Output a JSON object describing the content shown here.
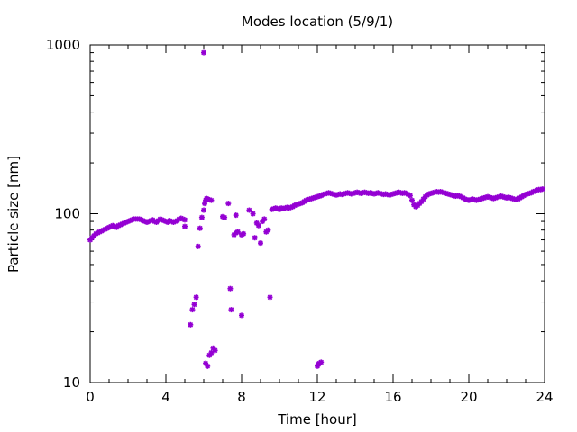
{
  "chart_data": {
    "type": "scatter",
    "title": "Modes location (5/9/1)",
    "xlabel": "Time [hour]",
    "ylabel": "Particle size [nm]",
    "xlim": [
      0,
      24
    ],
    "ylim": [
      10,
      1000
    ],
    "yscale": "log",
    "grid": false,
    "marker_color": "#9400d3",
    "x_ticks": [
      0,
      4,
      8,
      12,
      16,
      20,
      24
    ],
    "x_tick_labels": [
      "0",
      "4",
      "8",
      "12",
      "16",
      "20",
      "24"
    ],
    "y_ticks": [
      10,
      100,
      1000
    ],
    "y_tick_labels": [
      "10",
      "100",
      "1000"
    ],
    "series": [
      {
        "points": [
          [
            0.0,
            70
          ],
          [
            0.1,
            72
          ],
          [
            0.2,
            74
          ],
          [
            0.3,
            76
          ],
          [
            0.4,
            77
          ],
          [
            0.5,
            78
          ],
          [
            0.6,
            79
          ],
          [
            0.7,
            80
          ],
          [
            0.8,
            81
          ],
          [
            0.9,
            82
          ],
          [
            1.0,
            83
          ],
          [
            1.1,
            84
          ],
          [
            1.2,
            85
          ],
          [
            1.3,
            84
          ],
          [
            1.4,
            83
          ],
          [
            1.5,
            85
          ],
          [
            1.6,
            86
          ],
          [
            1.7,
            87
          ],
          [
            1.8,
            88
          ],
          [
            1.9,
            89
          ],
          [
            2.0,
            90
          ],
          [
            2.1,
            91
          ],
          [
            2.2,
            92
          ],
          [
            2.3,
            93
          ],
          [
            2.4,
            93
          ],
          [
            2.5,
            93
          ],
          [
            2.6,
            93
          ],
          [
            2.7,
            92
          ],
          [
            2.8,
            91
          ],
          [
            2.9,
            90
          ],
          [
            3.0,
            89
          ],
          [
            3.1,
            90
          ],
          [
            3.2,
            91
          ],
          [
            3.3,
            92
          ],
          [
            3.4,
            90
          ],
          [
            3.5,
            89
          ],
          [
            3.6,
            91
          ],
          [
            3.7,
            93
          ],
          [
            3.8,
            92
          ],
          [
            3.9,
            91
          ],
          [
            4.0,
            90
          ],
          [
            4.1,
            89
          ],
          [
            4.2,
            91
          ],
          [
            4.3,
            90
          ],
          [
            4.4,
            89
          ],
          [
            4.5,
            90
          ],
          [
            4.6,
            91
          ],
          [
            4.7,
            93
          ],
          [
            4.8,
            94
          ],
          [
            4.9,
            93
          ],
          [
            5.0,
            92
          ],
          [
            5.0,
            84
          ],
          [
            5.3,
            22
          ],
          [
            5.4,
            27
          ],
          [
            5.5,
            29
          ],
          [
            5.6,
            32
          ],
          [
            5.7,
            64
          ],
          [
            5.8,
            82
          ],
          [
            5.9,
            95
          ],
          [
            6.0,
            105
          ],
          [
            6.05,
            115
          ],
          [
            6.1,
            120
          ],
          [
            6.15,
            123
          ],
          [
            6.2,
            122
          ],
          [
            6.3,
            121
          ],
          [
            6.4,
            120
          ],
          [
            6.1,
            13
          ],
          [
            6.2,
            12.5
          ],
          [
            6.3,
            14.5
          ],
          [
            6.4,
            15
          ],
          [
            6.5,
            16
          ],
          [
            6.6,
            15.5
          ],
          [
            6.0,
            900
          ],
          [
            7.0,
            96
          ],
          [
            7.1,
            95
          ],
          [
            7.3,
            115
          ],
          [
            7.4,
            36
          ],
          [
            7.45,
            27
          ],
          [
            7.6,
            75
          ],
          [
            7.7,
            77
          ],
          [
            7.8,
            78
          ],
          [
            7.7,
            98
          ],
          [
            8.0,
            75
          ],
          [
            8.1,
            76
          ],
          [
            8.0,
            25
          ],
          [
            8.4,
            105
          ],
          [
            8.6,
            100
          ],
          [
            8.7,
            72
          ],
          [
            8.8,
            88
          ],
          [
            8.9,
            85
          ],
          [
            9.0,
            67
          ],
          [
            9.1,
            90
          ],
          [
            9.2,
            93
          ],
          [
            9.3,
            78
          ],
          [
            9.4,
            80
          ],
          [
            9.5,
            32
          ],
          [
            9.6,
            106
          ],
          [
            9.7,
            107
          ],
          [
            9.8,
            108
          ],
          [
            9.9,
            107
          ],
          [
            10.0,
            106
          ],
          [
            10.1,
            108
          ],
          [
            10.2,
            107
          ],
          [
            10.3,
            108
          ],
          [
            10.4,
            109
          ],
          [
            10.5,
            108
          ],
          [
            10.6,
            109
          ],
          [
            10.7,
            110
          ],
          [
            10.8,
            112
          ],
          [
            10.9,
            113
          ],
          [
            11.0,
            114
          ],
          [
            11.1,
            115
          ],
          [
            11.2,
            116
          ],
          [
            11.3,
            118
          ],
          [
            11.4,
            120
          ],
          [
            11.5,
            121
          ],
          [
            11.6,
            122
          ],
          [
            11.7,
            123
          ],
          [
            11.8,
            124
          ],
          [
            11.9,
            125
          ],
          [
            12.0,
            126
          ],
          [
            12.1,
            127
          ],
          [
            12.2,
            128
          ],
          [
            12.3,
            130
          ],
          [
            12.4,
            131
          ],
          [
            12.5,
            132
          ],
          [
            12.6,
            133
          ],
          [
            12.7,
            132
          ],
          [
            12.8,
            131
          ],
          [
            12.9,
            130
          ],
          [
            13.0,
            129
          ],
          [
            13.1,
            130
          ],
          [
            13.2,
            131
          ],
          [
            13.3,
            130
          ],
          [
            13.4,
            131
          ],
          [
            13.5,
            132
          ],
          [
            13.6,
            133
          ],
          [
            13.7,
            132
          ],
          [
            13.8,
            131
          ],
          [
            13.9,
            132
          ],
          [
            14.0,
            133
          ],
          [
            14.1,
            134
          ],
          [
            14.2,
            133
          ],
          [
            14.3,
            132
          ],
          [
            14.4,
            133
          ],
          [
            14.5,
            134
          ],
          [
            14.6,
            133
          ],
          [
            14.7,
            132
          ],
          [
            14.8,
            133
          ],
          [
            14.9,
            132
          ],
          [
            15.0,
            131
          ],
          [
            15.1,
            132
          ],
          [
            15.2,
            133
          ],
          [
            15.3,
            132
          ],
          [
            15.4,
            131
          ],
          [
            15.5,
            130
          ],
          [
            15.6,
            131
          ],
          [
            15.7,
            130
          ],
          [
            15.8,
            129
          ],
          [
            15.9,
            130
          ],
          [
            16.0,
            131
          ],
          [
            16.1,
            132
          ],
          [
            16.2,
            133
          ],
          [
            16.3,
            134
          ],
          [
            16.4,
            133
          ],
          [
            16.5,
            132
          ],
          [
            16.6,
            133
          ],
          [
            16.7,
            132
          ],
          [
            16.8,
            130
          ],
          [
            16.9,
            128
          ],
          [
            17.0,
            120
          ],
          [
            17.1,
            113
          ],
          [
            17.2,
            110
          ],
          [
            17.3,
            112
          ],
          [
            17.4,
            115
          ],
          [
            17.5,
            118
          ],
          [
            17.6,
            122
          ],
          [
            17.7,
            126
          ],
          [
            17.8,
            129
          ],
          [
            17.9,
            131
          ],
          [
            18.0,
            132
          ],
          [
            18.1,
            133
          ],
          [
            18.2,
            134
          ],
          [
            18.3,
            135
          ],
          [
            18.4,
            134
          ],
          [
            18.5,
            135
          ],
          [
            18.6,
            134
          ],
          [
            18.7,
            133
          ],
          [
            18.8,
            132
          ],
          [
            18.9,
            131
          ],
          [
            19.0,
            130
          ],
          [
            19.1,
            129
          ],
          [
            19.2,
            128
          ],
          [
            19.3,
            127
          ],
          [
            19.4,
            128
          ],
          [
            19.5,
            127
          ],
          [
            19.6,
            126
          ],
          [
            19.7,
            124
          ],
          [
            19.8,
            122
          ],
          [
            19.9,
            121
          ],
          [
            20.0,
            120
          ],
          [
            20.1,
            121
          ],
          [
            20.2,
            122
          ],
          [
            20.3,
            121
          ],
          [
            20.4,
            120
          ],
          [
            20.5,
            121
          ],
          [
            20.6,
            122
          ],
          [
            20.7,
            123
          ],
          [
            20.8,
            124
          ],
          [
            20.9,
            125
          ],
          [
            21.0,
            126
          ],
          [
            21.1,
            125
          ],
          [
            21.2,
            124
          ],
          [
            21.3,
            123
          ],
          [
            21.4,
            124
          ],
          [
            21.5,
            125
          ],
          [
            21.6,
            126
          ],
          [
            21.7,
            127
          ],
          [
            21.8,
            126
          ],
          [
            21.9,
            125
          ],
          [
            22.0,
            124
          ],
          [
            22.1,
            125
          ],
          [
            22.2,
            124
          ],
          [
            22.3,
            123
          ],
          [
            22.4,
            122
          ],
          [
            22.5,
            121
          ],
          [
            22.6,
            122
          ],
          [
            22.7,
            124
          ],
          [
            22.8,
            126
          ],
          [
            22.9,
            128
          ],
          [
            23.0,
            130
          ],
          [
            23.1,
            131
          ],
          [
            23.2,
            132
          ],
          [
            23.3,
            133
          ],
          [
            23.4,
            135
          ],
          [
            23.5,
            136
          ],
          [
            23.6,
            138
          ],
          [
            23.7,
            139
          ],
          [
            23.8,
            139
          ],
          [
            23.9,
            140
          ],
          [
            12.0,
            12.5
          ],
          [
            12.05,
            12.8
          ],
          [
            12.1,
            13
          ],
          [
            12.2,
            13.2
          ]
        ]
      }
    ]
  }
}
